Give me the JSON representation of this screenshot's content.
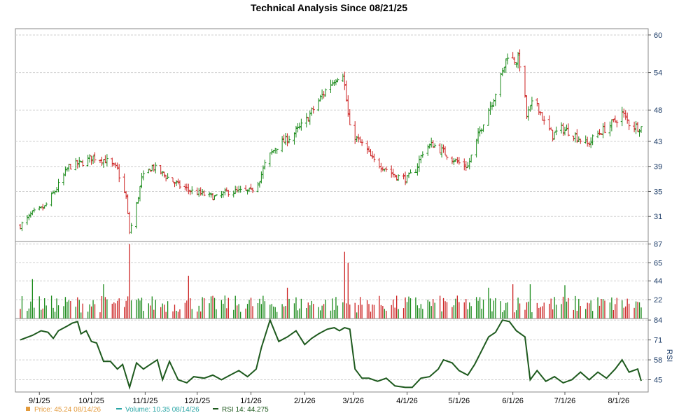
{
  "chart_data": {
    "title": "Technical Analysis Since 08/21/25",
    "x_tick_labels": [
      "9/1/25",
      "10/1/25",
      "11/1/25",
      "12/1/25",
      "1/1/26",
      "2/1/26",
      "3/1/26",
      "4/1/26",
      "5/1/26",
      "6/1/26",
      "7/1/26",
      "8/1/26"
    ],
    "x_range": [
      "2025-08-21",
      "2026-08-14"
    ],
    "panels": [
      {
        "name": "price",
        "type": "ohlc",
        "y_ticks": [
          31,
          35,
          39,
          43,
          48,
          54,
          60
        ],
        "ylim": [
          27,
          61
        ],
        "grid": true,
        "up_color": "#1a8a1a",
        "down_color": "#cc2222",
        "close_path": [
          [
            "2025-08-21",
            29.5
          ],
          [
            "2025-08-28",
            31.5
          ],
          [
            "2025-09-04",
            32.5
          ],
          [
            "2025-09-11",
            35.5
          ],
          [
            "2025-09-18",
            39
          ],
          [
            "2025-09-25",
            39.5
          ],
          [
            "2025-10-02",
            40.5
          ],
          [
            "2025-10-09",
            40
          ],
          [
            "2025-10-16",
            38.5
          ],
          [
            "2025-10-19",
            35.5
          ],
          [
            "2025-10-21",
            34
          ],
          [
            "2025-10-23",
            28.5
          ],
          [
            "2025-10-26",
            31.5
          ],
          [
            "2025-10-30",
            37
          ],
          [
            "2025-11-05",
            39
          ],
          [
            "2025-11-10",
            38
          ],
          [
            "2025-11-15",
            37
          ],
          [
            "2025-11-20",
            36
          ],
          [
            "2025-11-28",
            35
          ],
          [
            "2025-12-05",
            34.5
          ],
          [
            "2025-12-12",
            34
          ],
          [
            "2025-12-19",
            35
          ],
          [
            "2025-12-26",
            35
          ],
          [
            "2026-01-01",
            35
          ],
          [
            "2026-01-06",
            37
          ],
          [
            "2026-01-10",
            40
          ],
          [
            "2026-01-15",
            42
          ],
          [
            "2026-01-20",
            43
          ],
          [
            "2026-01-25",
            44
          ],
          [
            "2026-02-01",
            46
          ],
          [
            "2026-02-08",
            49
          ],
          [
            "2026-02-15",
            52
          ],
          [
            "2026-02-20",
            53.5
          ],
          [
            "2026-02-23",
            54
          ],
          [
            "2026-02-25",
            49.5
          ],
          [
            "2026-02-27",
            45
          ],
          [
            "2026-03-04",
            43
          ],
          [
            "2026-03-08",
            42
          ],
          [
            "2026-03-12",
            40
          ],
          [
            "2026-03-18",
            39
          ],
          [
            "2026-03-25",
            37.5
          ],
          [
            "2026-04-01",
            37
          ],
          [
            "2026-04-06",
            38.5
          ],
          [
            "2026-04-11",
            42
          ],
          [
            "2026-04-16",
            42.5
          ],
          [
            "2026-04-21",
            41.5
          ],
          [
            "2026-04-26",
            40.5
          ],
          [
            "2026-05-01",
            39.5
          ],
          [
            "2026-05-06",
            39
          ],
          [
            "2026-05-11",
            43
          ],
          [
            "2026-05-16",
            47
          ],
          [
            "2026-05-21",
            50
          ],
          [
            "2026-05-26",
            54
          ],
          [
            "2026-05-29",
            57
          ],
          [
            "2026-06-01",
            56
          ],
          [
            "2026-06-04",
            56
          ],
          [
            "2026-06-06",
            55
          ],
          [
            "2026-06-09",
            47
          ],
          [
            "2026-06-14",
            50
          ],
          [
            "2026-06-19",
            46
          ],
          [
            "2026-06-24",
            44
          ],
          [
            "2026-06-29",
            45
          ],
          [
            "2026-07-04",
            44.5
          ],
          [
            "2026-07-09",
            43.5
          ],
          [
            "2026-07-14",
            42.5
          ],
          [
            "2026-07-19",
            44
          ],
          [
            "2026-07-24",
            45
          ],
          [
            "2026-07-29",
            46
          ],
          [
            "2026-08-03",
            47.5
          ],
          [
            "2026-08-08",
            45.5
          ],
          [
            "2026-08-14",
            45.24
          ]
        ]
      },
      {
        "name": "volume",
        "type": "bar",
        "y_ticks": [
          22,
          44,
          65,
          87
        ],
        "ylim": [
          0,
          90
        ],
        "grid": true,
        "spikes": [
          [
            "2025-10-23",
            87
          ],
          [
            "2026-02-24",
            78
          ],
          [
            "2026-02-26",
            65
          ],
          [
            "2026-02-28",
            62
          ],
          [
            "2025-11-26",
            50
          ],
          [
            "2025-08-28",
            46
          ],
          [
            "2025-09-21",
            46
          ],
          [
            "2025-10-18",
            45
          ],
          [
            "2025-10-08",
            40
          ],
          [
            "2026-06-01",
            40
          ],
          [
            "2026-06-11",
            40
          ],
          [
            "2026-07-01",
            39
          ],
          [
            "2026-01-22",
            36
          ],
          [
            "2026-04-05",
            38
          ],
          [
            "2026-05-18",
            36
          ]
        ]
      },
      {
        "name": "rsi",
        "type": "line",
        "y_ticks": [
          45,
          58,
          71,
          84
        ],
        "ylim": [
          37,
          85
        ],
        "grid": true,
        "axis_label": "RSI",
        "color": "#1e5a1e",
        "points": [
          [
            "2025-08-21",
            71
          ],
          [
            "2025-08-28",
            74
          ],
          [
            "2025-09-02",
            77
          ],
          [
            "2025-09-06",
            76
          ],
          [
            "2025-09-09",
            72
          ],
          [
            "2025-09-12",
            77
          ],
          [
            "2025-09-17",
            80
          ],
          [
            "2025-09-20",
            82
          ],
          [
            "2025-09-23",
            83
          ],
          [
            "2025-09-25",
            75
          ],
          [
            "2025-09-28",
            77
          ],
          [
            "2025-10-01",
            70
          ],
          [
            "2025-10-04",
            69
          ],
          [
            "2025-10-08",
            57
          ],
          [
            "2025-10-12",
            57
          ],
          [
            "2025-10-16",
            52
          ],
          [
            "2025-10-19",
            55
          ],
          [
            "2025-10-23",
            40
          ],
          [
            "2025-10-27",
            56
          ],
          [
            "2025-10-31",
            52
          ],
          [
            "2025-11-04",
            55
          ],
          [
            "2025-11-08",
            58
          ],
          [
            "2025-11-11",
            45
          ],
          [
            "2025-11-15",
            57
          ],
          [
            "2025-11-20",
            45
          ],
          [
            "2025-11-25",
            43
          ],
          [
            "2025-11-29",
            47
          ],
          [
            "2025-12-05",
            46
          ],
          [
            "2025-12-10",
            48
          ],
          [
            "2025-12-15",
            45
          ],
          [
            "2025-12-20",
            48
          ],
          [
            "2025-12-25",
            51
          ],
          [
            "2025-12-30",
            47
          ],
          [
            "2026-01-04",
            52
          ],
          [
            "2026-01-07",
            66
          ],
          [
            "2026-01-12",
            84
          ],
          [
            "2026-01-17",
            70
          ],
          [
            "2026-01-22",
            73
          ],
          [
            "2026-01-27",
            77
          ],
          [
            "2026-02-01",
            68
          ],
          [
            "2026-02-05",
            72
          ],
          [
            "2026-02-09",
            75
          ],
          [
            "2026-02-14",
            78
          ],
          [
            "2026-02-18",
            79
          ],
          [
            "2026-02-21",
            77
          ],
          [
            "2026-02-24",
            79
          ],
          [
            "2026-02-27",
            78
          ],
          [
            "2026-03-02",
            52
          ],
          [
            "2026-03-06",
            46
          ],
          [
            "2026-03-10",
            46
          ],
          [
            "2026-03-15",
            44
          ],
          [
            "2026-03-20",
            46
          ],
          [
            "2026-03-25",
            41
          ],
          [
            "2026-03-31",
            40
          ],
          [
            "2026-04-04",
            40
          ],
          [
            "2026-04-09",
            46
          ],
          [
            "2026-04-14",
            47
          ],
          [
            "2026-04-19",
            52
          ],
          [
            "2026-04-22",
            58
          ],
          [
            "2026-04-27",
            56
          ],
          [
            "2026-05-01",
            51
          ],
          [
            "2026-05-06",
            48
          ],
          [
            "2026-05-10",
            55
          ],
          [
            "2026-05-14",
            64
          ],
          [
            "2026-05-18",
            73
          ],
          [
            "2026-05-22",
            76
          ],
          [
            "2026-05-26",
            84
          ],
          [
            "2026-05-30",
            83
          ],
          [
            "2026-06-03",
            77
          ],
          [
            "2026-06-08",
            73
          ],
          [
            "2026-06-11",
            45
          ],
          [
            "2026-06-15",
            51
          ],
          [
            "2026-06-20",
            44
          ],
          [
            "2026-06-25",
            47
          ],
          [
            "2026-06-30",
            43
          ],
          [
            "2026-07-05",
            45
          ],
          [
            "2026-07-10",
            50
          ],
          [
            "2026-07-15",
            45
          ],
          [
            "2026-07-20",
            50
          ],
          [
            "2026-07-25",
            46
          ],
          [
            "2026-07-30",
            52
          ],
          [
            "2026-08-03",
            58
          ],
          [
            "2026-08-07",
            50
          ],
          [
            "2026-08-12",
            52
          ],
          [
            "2026-08-14",
            44.275
          ]
        ]
      }
    ],
    "legend": [
      {
        "label": "Price: 45.24  08/14/26",
        "color": "#e39a3b",
        "marker": "square"
      },
      {
        "label": "Volume: 10.35  08/14/26",
        "color": "#2aa6a6",
        "marker": "dash"
      },
      {
        "label": "RSI 14: 44.275",
        "color": "#1e5a1e",
        "marker": "dash"
      }
    ]
  }
}
